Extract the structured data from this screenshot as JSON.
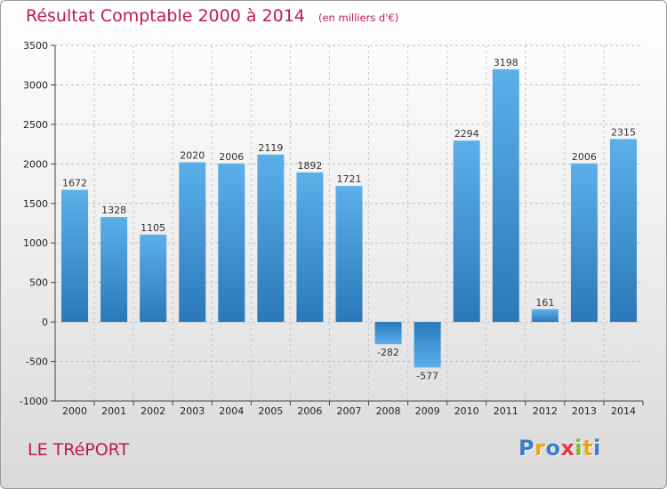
{
  "title": "Résultat Comptable 2000 à 2014",
  "unit_note": "(en milliers d'€)",
  "place": "LE TRéPORT",
  "brand": {
    "letters": [
      "P",
      "r",
      "o",
      "x",
      "i",
      "t",
      "i"
    ],
    "colors": [
      "#3b7ec6",
      "#f0a21a",
      "#3b7ec6",
      "#e8383d",
      "#7dbb2a",
      "#f0a21a",
      "#3b7ec6"
    ]
  },
  "chart_data": {
    "type": "bar",
    "title": "Résultat Comptable 2000 à 2014",
    "subtitle": "(en milliers d'€)",
    "xlabel": "",
    "ylabel": "",
    "categories": [
      "2000",
      "2001",
      "2002",
      "2003",
      "2004",
      "2005",
      "2006",
      "2007",
      "2008",
      "2009",
      "2010",
      "2011",
      "2012",
      "2013",
      "2014"
    ],
    "values": [
      1672,
      1328,
      1105,
      2020,
      2006,
      2119,
      1892,
      1721,
      -282,
      -577,
      2294,
      3198,
      161,
      2006,
      2315
    ],
    "data_labels": [
      "1672",
      "1328",
      "1105",
      "2020",
      "2006",
      "2119",
      "1892",
      "1721",
      "-282",
      "-577",
      "2294",
      "3198",
      "161",
      "2006",
      "2315"
    ],
    "ylim": [
      -1000,
      3500
    ],
    "yticks": [
      3500,
      3000,
      2500,
      2000,
      1500,
      1000,
      500,
      0,
      -500,
      -1000
    ],
    "ytick_labels": [
      "3500",
      "3000",
      "2500",
      "2000",
      "1500",
      "1000",
      "500",
      "0",
      "-500",
      "-1000"
    ],
    "grid": "dashed-both",
    "colors": {
      "bar_light": "#5aaee8",
      "bar_dark": "#2a78b8"
    }
  }
}
